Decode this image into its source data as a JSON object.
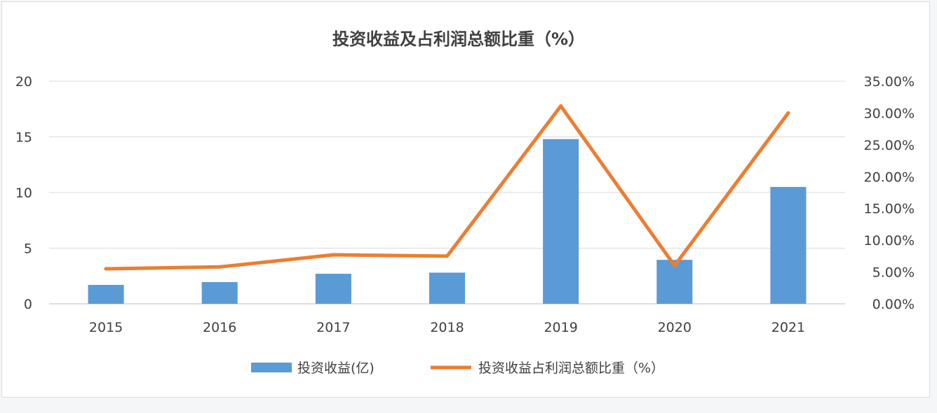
{
  "chart_data": {
    "type": "bar",
    "title": "投资收益及占利润总额比重（%）",
    "categories": [
      "2015",
      "2016",
      "2017",
      "2018",
      "2019",
      "2020",
      "2021"
    ],
    "series": [
      {
        "name": "投资收益(亿)",
        "type": "bar",
        "axis": "left",
        "color": "#5b9bd5",
        "values": [
          1.7,
          1.95,
          2.7,
          2.8,
          14.8,
          3.95,
          10.5
        ]
      },
      {
        "name": "投资收益占利润总额比重（%）",
        "type": "line",
        "axis": "right",
        "color": "#ed7d31",
        "values": [
          5.5,
          5.8,
          7.7,
          7.5,
          31.1,
          6.0,
          30.0
        ]
      }
    ],
    "y_left": {
      "min": 0,
      "max": 20,
      "ticks": [
        "0",
        "5",
        "10",
        "15",
        "20"
      ]
    },
    "y_right": {
      "min": 0,
      "max": 35,
      "ticks": [
        "0.00%",
        "5.00%",
        "10.00%",
        "15.00%",
        "20.00%",
        "25.00%",
        "30.00%",
        "35.00%"
      ]
    },
    "grid": true,
    "legend_position": "bottom"
  }
}
